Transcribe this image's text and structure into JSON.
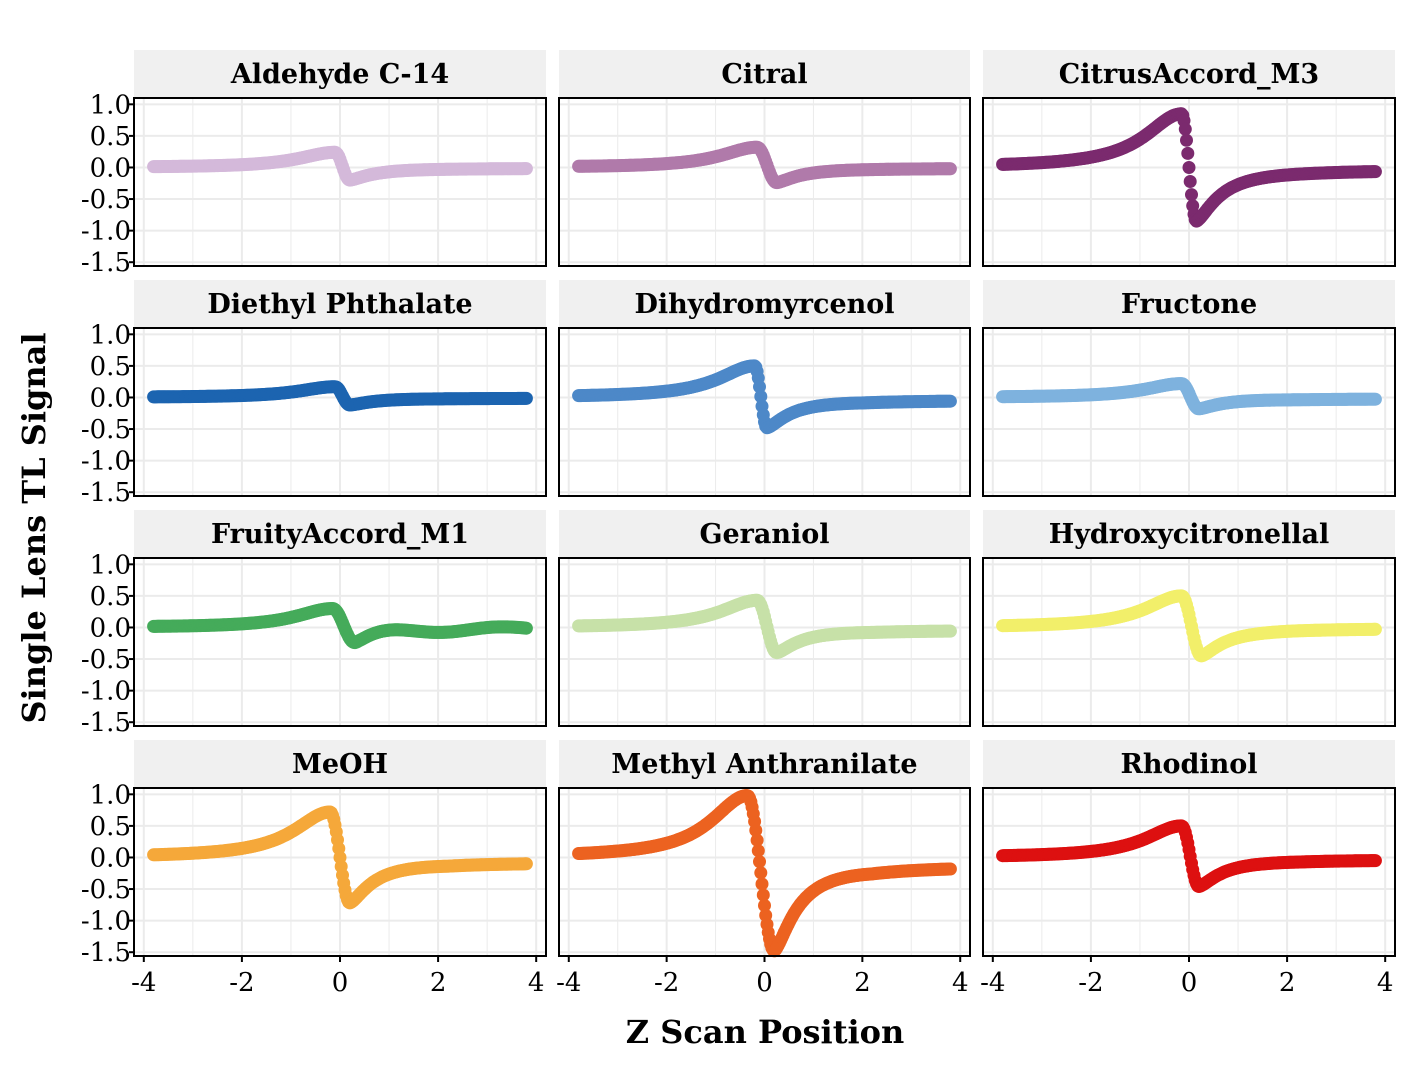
{
  "chart_data": {
    "type": "scatter",
    "layout": "facet grid, 4 rows x 3 columns, shared axes",
    "xlabel": "Z Scan Position",
    "ylabel": "Single Lens TL Signal",
    "xlim": [
      -4,
      4
    ],
    "ylim": [
      -1.5,
      1.0
    ],
    "x_ticks": [
      "-4",
      "-2",
      "0",
      "2",
      "4"
    ],
    "y_ticks": [
      "1.0",
      "0.5",
      "0.0",
      "-0.5",
      "-1.0",
      "-1.5"
    ],
    "x_tick_values": [
      -4,
      -2,
      0,
      2,
      4
    ],
    "y_tick_values": [
      1.0,
      0.5,
      0.0,
      -0.5,
      -1.0,
      -1.5
    ],
    "x_range": [
      -3.8,
      3.8
    ],
    "gridlines": true,
    "series": [
      {
        "name": "Aldehyde C-14",
        "color": "#d4b9da",
        "peak_z": -0.1,
        "peak": 0.24,
        "valley_z": 0.2,
        "valley": -0.2,
        "tail_end": -0.01,
        "ripple": false
      },
      {
        "name": "Citral",
        "color": "#b07aaa",
        "peak_z": -0.15,
        "peak": 0.32,
        "valley_z": 0.25,
        "valley": -0.24,
        "tail_end": -0.01,
        "ripple": false
      },
      {
        "name": "CitrusAccord_M3",
        "color": "#7b2a6e",
        "peak_z": -0.15,
        "peak": 0.85,
        "valley_z": 0.15,
        "valley": -0.85,
        "tail_end": -0.03,
        "ripple": false
      },
      {
        "name": "Diethyl Phthalate",
        "color": "#1c64b0",
        "peak_z": -0.1,
        "peak": 0.17,
        "valley_z": 0.2,
        "valley": -0.12,
        "tail_end": -0.01,
        "ripple": false
      },
      {
        "name": "Dihydromyrcenol",
        "color": "#4d88c8",
        "peak_z": -0.2,
        "peak": 0.5,
        "valley_z": 0.05,
        "valley": -0.48,
        "tail_end": -0.04,
        "ripple": false
      },
      {
        "name": "Fructone",
        "color": "#7eb2de",
        "peak_z": -0.15,
        "peak": 0.22,
        "valley_z": 0.2,
        "valley": -0.18,
        "tail_end": -0.02,
        "ripple": false
      },
      {
        "name": "FruityAccord_M1",
        "color": "#45ab5a",
        "peak_z": -0.15,
        "peak": 0.3,
        "valley_z": 0.3,
        "valley": -0.24,
        "tail_end": -0.01,
        "ripple": true
      },
      {
        "name": "Geraniol",
        "color": "#c7e1a8",
        "peak_z": -0.15,
        "peak": 0.43,
        "valley_z": 0.25,
        "valley": -0.4,
        "tail_end": -0.04,
        "ripple": false
      },
      {
        "name": "Hydroxycitronellal",
        "color": "#f2ef6a",
        "peak_z": -0.15,
        "peak": 0.5,
        "valley_z": 0.25,
        "valley": -0.45,
        "tail_end": -0.01,
        "ripple": false
      },
      {
        "name": "MeOH",
        "color": "#f5a83a",
        "peak_z": -0.2,
        "peak": 0.72,
        "valley_z": 0.2,
        "valley": -0.72,
        "tail_end": -0.07,
        "ripple": false
      },
      {
        "name": "Methyl Anthranilate",
        "color": "#ec6220",
        "peak_z": -0.35,
        "peak": 0.98,
        "valley_z": 0.2,
        "valley": -1.48,
        "tail_end": -0.12,
        "ripple": false
      },
      {
        "name": "Rhodinol",
        "color": "#dd1010",
        "peak_z": -0.15,
        "peak": 0.5,
        "valley_z": 0.2,
        "valley": -0.46,
        "tail_end": -0.03,
        "ripple": false
      }
    ]
  },
  "colors": {
    "strip_background": "#f0f0f0",
    "panel_background": "#ffffff",
    "grid": "#ebebeb",
    "border": "#000000"
  }
}
